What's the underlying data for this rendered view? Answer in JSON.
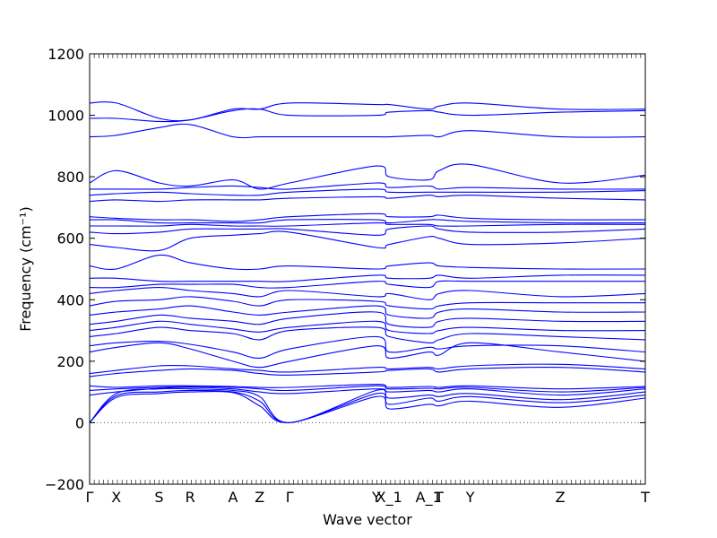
{
  "chart_data": {
    "type": "line",
    "title": "",
    "xlabel": "Wave vector",
    "ylabel": "Frequency (cm⁻¹)",
    "ylim": [
      -200,
      1200
    ],
    "yticks": [
      -200,
      0,
      200,
      400,
      600,
      800,
      1000,
      1200
    ],
    "ytick_labels": [
      "−200",
      "0",
      "200",
      "400",
      "600",
      "800",
      "1000",
      "1200"
    ],
    "xrange": [
      0,
      1
    ],
    "high_symmetry_points": [
      {
        "label": "Γ",
        "x": 0.0
      },
      {
        "label": "X",
        "x": 0.048
      },
      {
        "label": "S",
        "x": 0.125
      },
      {
        "label": "R",
        "x": 0.181
      },
      {
        "label": "A",
        "x": 0.258
      },
      {
        "label": "Z",
        "x": 0.306
      },
      {
        "label": "Γ",
        "x": 0.36
      },
      {
        "label": "Y",
        "x": 0.516
      },
      {
        "label": "X_1",
        "x": 0.539
      },
      {
        "label": "A_1",
        "x": 0.61
      },
      {
        "label": "T",
        "x": 0.629
      },
      {
        "label": "Y",
        "x": 0.685
      },
      {
        "label": "Z",
        "x": 0.847
      },
      {
        "label": "T",
        "x": 1.0
      }
    ],
    "zero_line": true,
    "line_color": "#0000ff",
    "grid": false,
    "series": [
      {
        "values": [
          0,
          82,
          95,
          100,
          98,
          55,
          0,
          85,
          45,
          60,
          55,
          70,
          50,
          80
        ]
      },
      {
        "values": [
          0,
          88,
          100,
          105,
          100,
          70,
          0,
          95,
          60,
          80,
          70,
          85,
          65,
          90
        ]
      },
      {
        "values": [
          0,
          95,
          110,
          110,
          105,
          85,
          0,
          105,
          80,
          90,
          85,
          95,
          75,
          100
        ]
      },
      {
        "values": [
          90,
          100,
          112,
          115,
          110,
          100,
          95,
          110,
          100,
          105,
          100,
          110,
          90,
          110
        ]
      },
      {
        "values": [
          105,
          110,
          115,
          118,
          115,
          110,
          105,
          120,
          110,
          112,
          110,
          115,
          100,
          115
        ]
      },
      {
        "values": [
          120,
          115,
          120,
          120,
          118,
          115,
          115,
          125,
          115,
          118,
          115,
          120,
          110,
          118
        ]
      },
      {
        "values": [
          150,
          160,
          170,
          175,
          170,
          160,
          155,
          165,
          170,
          175,
          165,
          175,
          180,
          165
        ]
      },
      {
        "values": [
          160,
          170,
          185,
          185,
          175,
          170,
          165,
          180,
          175,
          180,
          175,
          185,
          190,
          175
        ]
      },
      {
        "values": [
          230,
          245,
          260,
          240,
          200,
          180,
          200,
          250,
          210,
          230,
          220,
          260,
          230,
          200
        ]
      },
      {
        "values": [
          250,
          260,
          265,
          255,
          230,
          210,
          240,
          280,
          230,
          245,
          240,
          250,
          250,
          230
        ]
      },
      {
        "values": [
          280,
          290,
          310,
          300,
          290,
          270,
          300,
          310,
          280,
          260,
          270,
          290,
          280,
          270
        ]
      },
      {
        "values": [
          300,
          310,
          330,
          320,
          305,
          295,
          310,
          330,
          300,
          290,
          300,
          310,
          300,
          300
        ]
      },
      {
        "values": [
          320,
          330,
          350,
          340,
          330,
          320,
          340,
          360,
          320,
          310,
          330,
          340,
          330,
          330
        ]
      },
      {
        "values": [
          350,
          360,
          370,
          380,
          360,
          350,
          360,
          380,
          350,
          340,
          360,
          370,
          360,
          360
        ]
      },
      {
        "values": [
          380,
          395,
          400,
          410,
          395,
          380,
          400,
          395,
          380,
          370,
          380,
          390,
          390,
          390
        ]
      },
      {
        "values": [
          420,
          430,
          440,
          430,
          420,
          410,
          430,
          410,
          420,
          400,
          420,
          430,
          410,
          420
        ]
      },
      {
        "values": [
          440,
          440,
          450,
          450,
          450,
          440,
          440,
          460,
          450,
          440,
          460,
          460,
          460,
          460
        ]
      },
      {
        "values": [
          470,
          470,
          460,
          460,
          460,
          460,
          460,
          480,
          470,
          470,
          480,
          470,
          480,
          480
        ]
      },
      {
        "values": [
          510,
          500,
          545,
          520,
          500,
          500,
          510,
          500,
          510,
          520,
          510,
          505,
          500,
          500
        ]
      },
      {
        "values": [
          580,
          570,
          560,
          600,
          610,
          615,
          620,
          570,
          580,
          605,
          600,
          580,
          585,
          600
        ]
      },
      {
        "values": [
          620,
          615,
          620,
          630,
          630,
          630,
          630,
          610,
          630,
          640,
          630,
          620,
          620,
          630
        ]
      },
      {
        "values": [
          640,
          640,
          640,
          645,
          640,
          640,
          640,
          650,
          645,
          645,
          640,
          640,
          645,
          645
        ]
      },
      {
        "values": [
          660,
          660,
          650,
          650,
          650,
          650,
          660,
          660,
          650,
          660,
          660,
          655,
          650,
          650
        ]
      },
      {
        "values": [
          670,
          665,
          660,
          660,
          655,
          660,
          670,
          680,
          670,
          670,
          675,
          665,
          660,
          660
        ]
      },
      {
        "values": [
          720,
          725,
          720,
          725,
          725,
          725,
          730,
          735,
          730,
          740,
          735,
          740,
          730,
          725
        ]
      },
      {
        "values": [
          740,
          745,
          750,
          745,
          740,
          740,
          750,
          760,
          750,
          750,
          750,
          750,
          750,
          755
        ]
      },
      {
        "values": [
          760,
          760,
          760,
          765,
          770,
          765,
          760,
          780,
          765,
          770,
          760,
          765,
          760,
          760
        ]
      },
      {
        "values": [
          780,
          820,
          780,
          770,
          790,
          760,
          780,
          835,
          800,
          790,
          820,
          840,
          780,
          805
        ]
      },
      {
        "values": [
          930,
          935,
          960,
          970,
          930,
          930,
          930,
          930,
          930,
          935,
          930,
          950,
          930,
          930
        ]
      },
      {
        "values": [
          990,
          990,
          980,
          985,
          1015,
          1020,
          1000,
          1000,
          1010,
          1015,
          1010,
          1000,
          1010,
          1015
        ]
      },
      {
        "values": [
          1040,
          1040,
          990,
          985,
          1020,
          1020,
          1040,
          1035,
          1035,
          1020,
          1030,
          1040,
          1020,
          1020
        ]
      }
    ]
  }
}
